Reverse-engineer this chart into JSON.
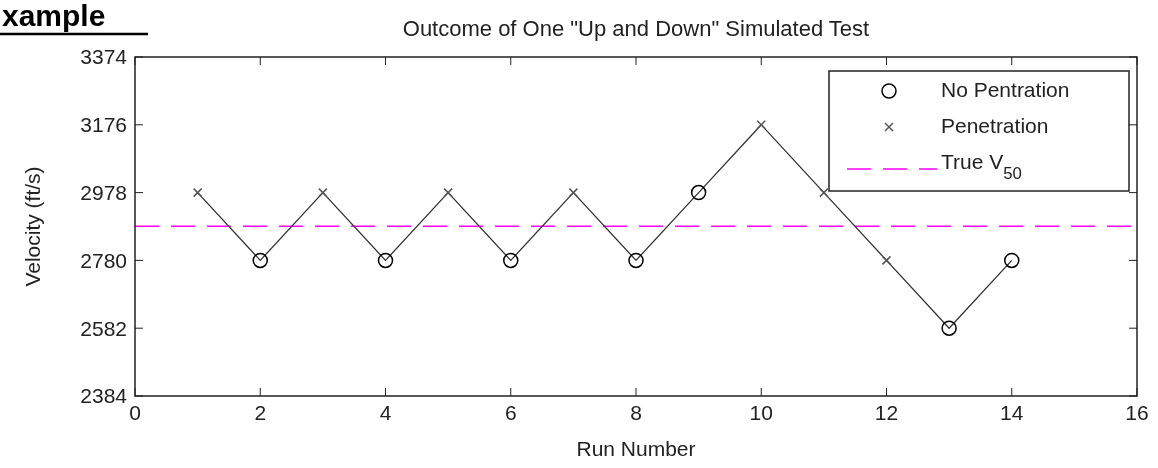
{
  "chart_data": {
    "type": "line",
    "title": "Outcome of One \"Up and Down\" Simulated Test",
    "xlabel": "Run Number",
    "ylabel": "Velocity (ft/s)",
    "annotations": [
      "xample"
    ],
    "xlim": [
      0,
      16
    ],
    "xticks": [
      0,
      2,
      4,
      6,
      8,
      10,
      12,
      14,
      16
    ],
    "ylim": [
      2384,
      3374
    ],
    "yticks": [
      2384,
      2582,
      2780,
      2978,
      3176,
      3374
    ],
    "grid": false,
    "legend": "top right",
    "series": [
      {
        "color": "#333333",
        "marker": "none",
        "line_style": "solid",
        "x": [
          1,
          2,
          3,
          4,
          5,
          6,
          7,
          8,
          9,
          10,
          11,
          12,
          13,
          14
        ],
        "values": [
          2978,
          2780,
          2978,
          2780,
          2978,
          2780,
          2978,
          2780,
          2978,
          3176,
          2978,
          2780,
          2582,
          2780
        ]
      },
      {
        "type": "scatter",
        "name": "No Pentration",
        "color": "#000000",
        "marker": "circle",
        "x": [
          2,
          4,
          6,
          8,
          9,
          13,
          14
        ],
        "values": [
          2780,
          2780,
          2780,
          2780,
          2978,
          2582,
          2780
        ]
      },
      {
        "type": "scatter",
        "name": "Penetration",
        "color": "#555555",
        "marker": "cross",
        "x": [
          1,
          3,
          5,
          7,
          10,
          11,
          12
        ],
        "values": [
          2978,
          2978,
          2978,
          2978,
          3176,
          2978,
          2780
        ]
      }
    ],
    "ref_lines": [
      {
        "axis": "y",
        "value": 2880,
        "label": "True V$_{50}$",
        "color": "#ff00ff",
        "line_style": "dashed"
      }
    ]
  }
}
